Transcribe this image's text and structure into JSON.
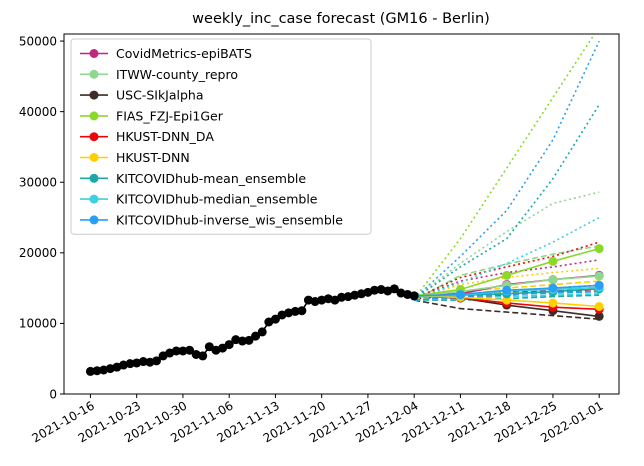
{
  "chart_data": {
    "type": "line",
    "title": "weekly_inc_case forecast (GM16 - Berlin)",
    "xlabel": "",
    "ylabel": "",
    "x_ticks": [
      "2021-10-16",
      "2021-10-23",
      "2021-10-30",
      "2021-11-06",
      "2021-11-13",
      "2021-11-20",
      "2021-11-27",
      "2021-12-04",
      "2021-12-11",
      "2021-12-18",
      "2021-12-25",
      "2022-01-01"
    ],
    "y_ticks": [
      0,
      10000,
      20000,
      30000,
      40000,
      50000
    ],
    "xlim": [
      "2021-10-12",
      "2022-01-04"
    ],
    "ylim": [
      0,
      51000
    ],
    "grid": false,
    "legend_position": "top-left",
    "truth": {
      "name": "",
      "color": "#000000",
      "x": [
        "2021-10-16",
        "2021-10-17",
        "2021-10-18",
        "2021-10-19",
        "2021-10-20",
        "2021-10-21",
        "2021-10-22",
        "2021-10-23",
        "2021-10-24",
        "2021-10-25",
        "2021-10-26",
        "2021-10-27",
        "2021-10-28",
        "2021-10-29",
        "2021-10-30",
        "2021-10-31",
        "2021-11-01",
        "2021-11-02",
        "2021-11-03",
        "2021-11-04",
        "2021-11-05",
        "2021-11-06",
        "2021-11-07",
        "2021-11-08",
        "2021-11-09",
        "2021-11-10",
        "2021-11-11",
        "2021-11-12",
        "2021-11-13",
        "2021-11-14",
        "2021-11-15",
        "2021-11-16",
        "2021-11-17",
        "2021-11-18",
        "2021-11-19",
        "2021-11-20",
        "2021-11-21",
        "2021-11-22",
        "2021-11-23",
        "2021-11-24",
        "2021-11-25",
        "2021-11-26",
        "2021-11-27",
        "2021-11-28",
        "2021-11-29",
        "2021-11-30",
        "2021-12-01",
        "2021-12-02",
        "2021-12-03",
        "2021-12-04"
      ],
      "y": [
        3200,
        3300,
        3400,
        3600,
        3800,
        4100,
        4300,
        4400,
        4600,
        4500,
        4700,
        5400,
        5800,
        6100,
        6100,
        6200,
        5600,
        5400,
        6700,
        6200,
        6500,
        7000,
        7700,
        7500,
        7600,
        8200,
        8800,
        10200,
        10600,
        11200,
        11500,
        11700,
        11800,
        13300,
        13100,
        13300,
        13500,
        13300,
        13700,
        13800,
        14000,
        14200,
        14400,
        14700,
        14800,
        14600,
        14900,
        14300,
        14100,
        13900
      ]
    },
    "forecast_start": "2021-12-04",
    "forecast_dates": [
      "2021-12-04",
      "2021-12-11",
      "2021-12-18",
      "2021-12-25",
      "2022-01-01"
    ],
    "series": [
      {
        "name": "CovidMetrics-epiBATS",
        "color": "#c0267e",
        "values": [
          13900,
          14200,
          15500,
          16200,
          16800
        ],
        "lower": [
          13300,
          14000,
          14400,
          14600,
          14800
        ],
        "upper": [
          13500,
          16000,
          17200,
          18000,
          19000
        ]
      },
      {
        "name": "ITWW-county_repro",
        "color": "#8fd68f",
        "values": [
          13900,
          14500,
          15400,
          16200,
          16700
        ],
        "lower": [
          13300,
          16800,
          18400,
          19800,
          21000
        ],
        "upper": [
          13500,
          18500,
          23000,
          27000,
          28600
        ]
      },
      {
        "name": "USC-SIkJalpha",
        "color": "#3d2b25",
        "values": [
          13900,
          13600,
          12600,
          11800,
          11000
        ],
        "lower": [
          13300,
          12100,
          11600,
          11100,
          10600
        ],
        "upper": [
          13500,
          14000,
          14500,
          15000,
          15400
        ]
      },
      {
        "name": "FIAS_FZJ-Epi1Ger",
        "color": "#8ad92a",
        "values": [
          13900,
          14800,
          16800,
          18800,
          20600
        ],
        "lower": [
          13300,
          14100,
          14300,
          14400,
          14500
        ],
        "upper": [
          13500,
          22000,
          32000,
          42000,
          52000
        ]
      },
      {
        "name": "HKUST-DNN_DA",
        "color": "#e8080a",
        "values": [
          13900,
          13600,
          12900,
          12300,
          12000
        ],
        "lower": [
          13300,
          13800,
          14000,
          14500,
          14800
        ],
        "upper": [
          13500,
          16500,
          18000,
          19500,
          21500
        ]
      },
      {
        "name": "HKUST-DNN",
        "color": "#ffd000",
        "values": [
          13900,
          13700,
          13300,
          12900,
          12400
        ],
        "lower": [
          13300,
          14500,
          15000,
          15500,
          16000
        ],
        "upper": [
          13500,
          15500,
          16500,
          17200,
          17800
        ]
      },
      {
        "name": "KITCOVIDhub-mean_ensemble",
        "color": "#1aa8a8",
        "values": [
          13900,
          14000,
          14200,
          14500,
          14900
        ],
        "lower": [
          13300,
          13300,
          13500,
          13800,
          14000
        ],
        "upper": [
          13500,
          18000,
          22000,
          30500,
          41000
        ]
      },
      {
        "name": "KITCOVIDhub-median_ensemble",
        "color": "#3dd0e0",
        "values": [
          13900,
          14000,
          14600,
          14800,
          15100
        ],
        "lower": [
          13300,
          13600,
          13800,
          14000,
          14200
        ],
        "upper": [
          13500,
          15800,
          18500,
          21500,
          25000
        ]
      },
      {
        "name": "KITCOVIDhub-inverse_wis_ensemble",
        "color": "#2a9df4",
        "values": [
          13900,
          14100,
          14700,
          15000,
          15400
        ],
        "lower": [
          13300,
          13800,
          14100,
          14300,
          14500
        ],
        "upper": [
          13500,
          19500,
          26000,
          36000,
          50000
        ]
      }
    ]
  }
}
